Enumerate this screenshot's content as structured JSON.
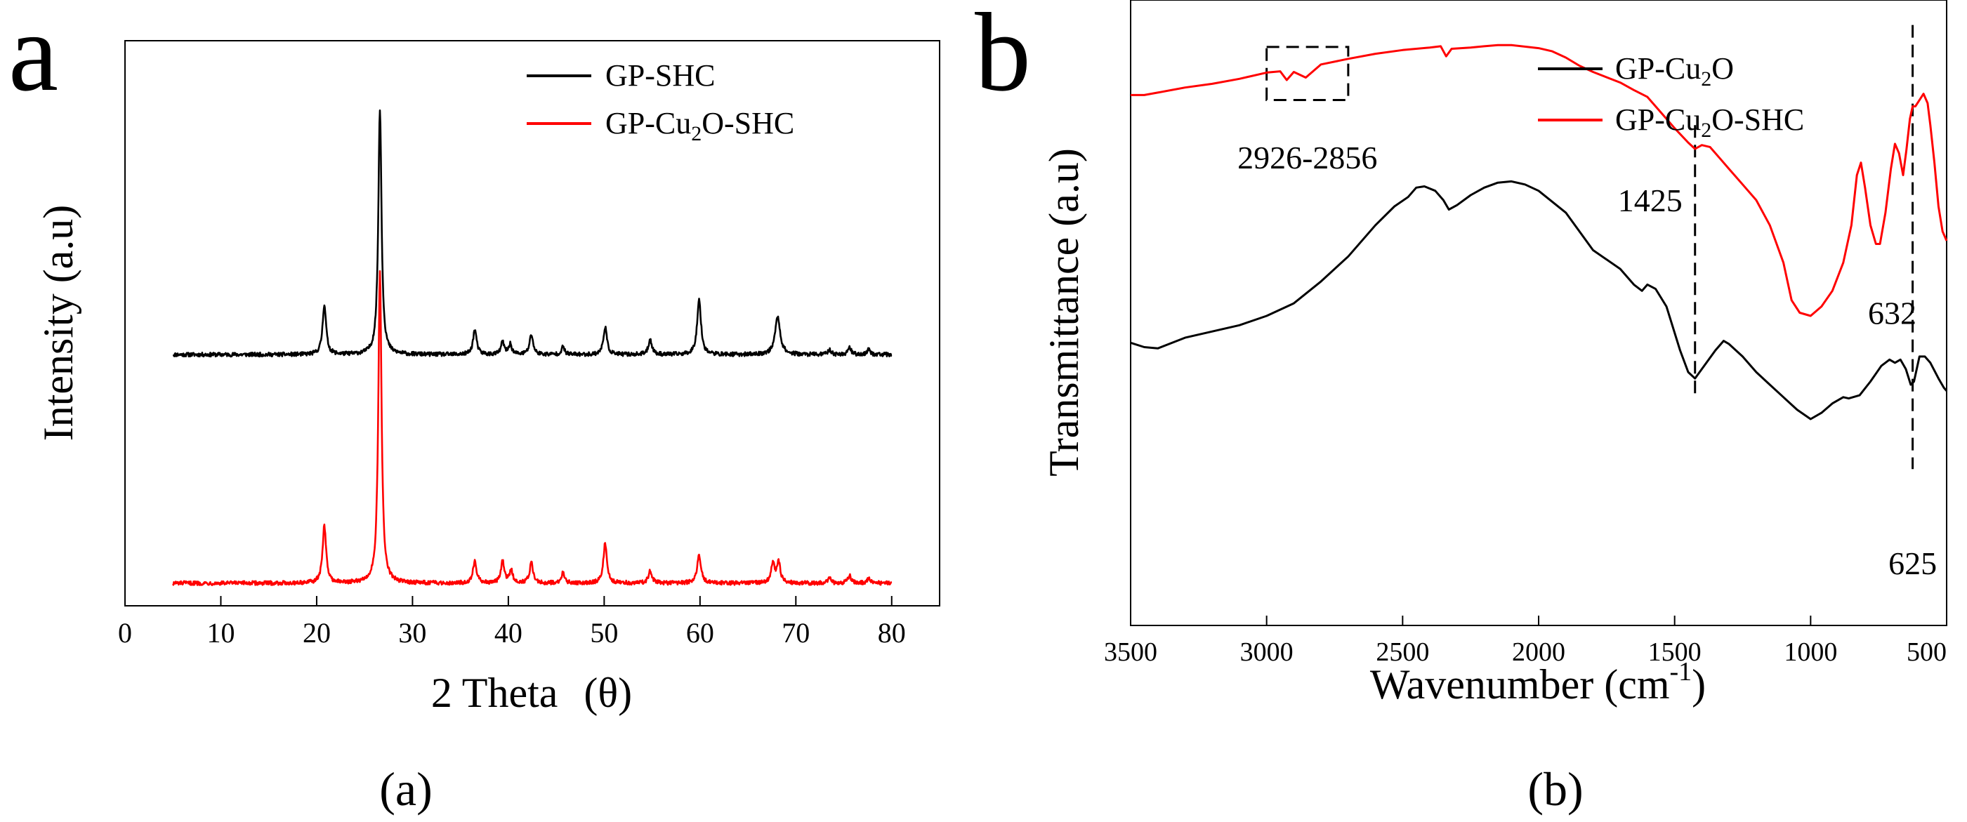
{
  "chart_data": [
    {
      "panel": "a",
      "type": "line",
      "panel_letter": "a",
      "caption": "(a)",
      "xlabel": "2 Theta",
      "xlabel_symbol": "(θ)",
      "ylabel": "Intensity (a.u)",
      "xlim": [
        0,
        85
      ],
      "ylim": [
        0,
        2.25
      ],
      "xticks": [
        0,
        10,
        20,
        30,
        40,
        50,
        60,
        70,
        80
      ],
      "y_ticks_shown": false,
      "legend_position": "top-right",
      "series": [
        {
          "name": "GP-SHC",
          "legend_main": "GP-SHC",
          "legend_sub": "",
          "legend_rest": "",
          "color": "#000000",
          "baseline": 1.0,
          "noise": 0.008,
          "x_range": [
            5,
            80
          ],
          "peaks": [
            {
              "x": 20.8,
              "h": 0.2,
              "w": 0.22
            },
            {
              "x": 26.6,
              "h": 0.98,
              "w": 0.2
            },
            {
              "x": 36.5,
              "h": 0.1,
              "w": 0.22
            },
            {
              "x": 39.4,
              "h": 0.05,
              "w": 0.2
            },
            {
              "x": 40.2,
              "h": 0.04,
              "w": 0.2
            },
            {
              "x": 42.4,
              "h": 0.08,
              "w": 0.22
            },
            {
              "x": 45.7,
              "h": 0.03,
              "w": 0.2
            },
            {
              "x": 50.1,
              "h": 0.11,
              "w": 0.22
            },
            {
              "x": 54.8,
              "h": 0.06,
              "w": 0.22
            },
            {
              "x": 59.9,
              "h": 0.22,
              "w": 0.24
            },
            {
              "x": 68.1,
              "h": 0.15,
              "w": 0.32
            },
            {
              "x": 73.5,
              "h": 0.02,
              "w": 0.2
            },
            {
              "x": 75.6,
              "h": 0.03,
              "w": 0.2
            },
            {
              "x": 77.6,
              "h": 0.02,
              "w": 0.2
            }
          ]
        },
        {
          "name": "GP-Cu2O-SHC",
          "legend_main": "GP-Cu",
          "legend_sub": "2",
          "legend_rest": "O-SHC",
          "color": "#ff0000",
          "baseline": 0.09,
          "noise": 0.008,
          "x_range": [
            5,
            80
          ],
          "peaks": [
            {
              "x": 20.8,
              "h": 0.23,
              "w": 0.22
            },
            {
              "x": 26.6,
              "h": 1.24,
              "w": 0.2
            },
            {
              "x": 36.5,
              "h": 0.09,
              "w": 0.22
            },
            {
              "x": 39.4,
              "h": 0.09,
              "w": 0.2
            },
            {
              "x": 40.3,
              "h": 0.05,
              "w": 0.2
            },
            {
              "x": 42.4,
              "h": 0.08,
              "w": 0.22
            },
            {
              "x": 45.7,
              "h": 0.04,
              "w": 0.2
            },
            {
              "x": 50.1,
              "h": 0.16,
              "w": 0.22
            },
            {
              "x": 54.8,
              "h": 0.05,
              "w": 0.22
            },
            {
              "x": 59.9,
              "h": 0.11,
              "w": 0.24
            },
            {
              "x": 67.6,
              "h": 0.08,
              "w": 0.22
            },
            {
              "x": 68.2,
              "h": 0.08,
              "w": 0.22
            },
            {
              "x": 73.5,
              "h": 0.02,
              "w": 0.2
            },
            {
              "x": 75.6,
              "h": 0.03,
              "w": 0.2
            },
            {
              "x": 77.6,
              "h": 0.02,
              "w": 0.2
            }
          ]
        }
      ]
    },
    {
      "panel": "b",
      "type": "line",
      "panel_letter": "b",
      "caption": "(b)",
      "xlabel": "Wavenumber (cm",
      "xlabel_sup": "-1",
      "xlabel_end": ")",
      "ylabel": "Transmittance (a.u)",
      "xlim": [
        3500,
        500
      ],
      "x_reversed": true,
      "ylim": [
        0,
        1
      ],
      "xticks": [
        3500,
        3000,
        2500,
        2000,
        1500,
        1000,
        500
      ],
      "y_ticks_shown": false,
      "legend_position": "top-right",
      "series": [
        {
          "name": "GP-Cu2O",
          "legend_main": "GP-Cu",
          "legend_sub": "2",
          "legend_rest": "O",
          "color": "#000000",
          "points": [
            [
              3500,
              0.452
            ],
            [
              3450,
              0.445
            ],
            [
              3400,
              0.443
            ],
            [
              3300,
              0.46
            ],
            [
              3200,
              0.47
            ],
            [
              3100,
              0.48
            ],
            [
              3000,
              0.495
            ],
            [
              2900,
              0.515
            ],
            [
              2800,
              0.55
            ],
            [
              2700,
              0.59
            ],
            [
              2600,
              0.64
            ],
            [
              2530,
              0.67
            ],
            [
              2480,
              0.685
            ],
            [
              2450,
              0.7
            ],
            [
              2420,
              0.702
            ],
            [
              2380,
              0.695
            ],
            [
              2350,
              0.68
            ],
            [
              2330,
              0.665
            ],
            [
              2300,
              0.672
            ],
            [
              2250,
              0.688
            ],
            [
              2200,
              0.7
            ],
            [
              2150,
              0.708
            ],
            [
              2100,
              0.71
            ],
            [
              2050,
              0.705
            ],
            [
              2000,
              0.695
            ],
            [
              1900,
              0.66
            ],
            [
              1800,
              0.6
            ],
            [
              1700,
              0.57
            ],
            [
              1650,
              0.545
            ],
            [
              1620,
              0.535
            ],
            [
              1600,
              0.545
            ],
            [
              1570,
              0.538
            ],
            [
              1530,
              0.51
            ],
            [
              1480,
              0.44
            ],
            [
              1450,
              0.405
            ],
            [
              1425,
              0.395
            ],
            [
              1400,
              0.41
            ],
            [
              1350,
              0.44
            ],
            [
              1320,
              0.455
            ],
            [
              1300,
              0.45
            ],
            [
              1250,
              0.43
            ],
            [
              1200,
              0.405
            ],
            [
              1150,
              0.385
            ],
            [
              1100,
              0.365
            ],
            [
              1050,
              0.345
            ],
            [
              1000,
              0.33
            ],
            [
              960,
              0.34
            ],
            [
              920,
              0.355
            ],
            [
              880,
              0.365
            ],
            [
              860,
              0.363
            ],
            [
              820,
              0.368
            ],
            [
              780,
              0.39
            ],
            [
              740,
              0.415
            ],
            [
              710,
              0.425
            ],
            [
              690,
              0.42
            ],
            [
              670,
              0.425
            ],
            [
              650,
              0.41
            ],
            [
              632,
              0.385
            ],
            [
              620,
              0.39
            ],
            [
              600,
              0.43
            ],
            [
              580,
              0.43
            ],
            [
              560,
              0.42
            ],
            [
              530,
              0.395
            ],
            [
              510,
              0.38
            ],
            [
              500,
              0.375
            ]
          ]
        },
        {
          "name": "GP-Cu2O-SHC",
          "legend_main": "GP-Cu",
          "legend_sub": "2",
          "legend_rest": "O-SHC",
          "color": "#ff0000",
          "points": [
            [
              3500,
              0.848
            ],
            [
              3450,
              0.848
            ],
            [
              3400,
              0.852
            ],
            [
              3300,
              0.86
            ],
            [
              3200,
              0.866
            ],
            [
              3100,
              0.874
            ],
            [
              3000,
              0.884
            ],
            [
              2950,
              0.886
            ],
            [
              2926,
              0.872
            ],
            [
              2900,
              0.885
            ],
            [
              2856,
              0.876
            ],
            [
              2800,
              0.897
            ],
            [
              2700,
              0.906
            ],
            [
              2600,
              0.914
            ],
            [
              2500,
              0.92
            ],
            [
              2400,
              0.924
            ],
            [
              2360,
              0.926
            ],
            [
              2340,
              0.91
            ],
            [
              2320,
              0.922
            ],
            [
              2250,
              0.924
            ],
            [
              2200,
              0.926
            ],
            [
              2150,
              0.928
            ],
            [
              2100,
              0.928
            ],
            [
              2000,
              0.923
            ],
            [
              1950,
              0.918
            ],
            [
              1900,
              0.908
            ],
            [
              1850,
              0.895
            ],
            [
              1800,
              0.885
            ],
            [
              1700,
              0.868
            ],
            [
              1650,
              0.856
            ],
            [
              1600,
              0.845
            ],
            [
              1550,
              0.82
            ],
            [
              1500,
              0.795
            ],
            [
              1450,
              0.772
            ],
            [
              1425,
              0.762
            ],
            [
              1400,
              0.768
            ],
            [
              1370,
              0.765
            ],
            [
              1330,
              0.745
            ],
            [
              1300,
              0.73
            ],
            [
              1250,
              0.705
            ],
            [
              1200,
              0.68
            ],
            [
              1150,
              0.64
            ],
            [
              1100,
              0.58
            ],
            [
              1070,
              0.52
            ],
            [
              1040,
              0.5
            ],
            [
              1000,
              0.495
            ],
            [
              960,
              0.51
            ],
            [
              920,
              0.535
            ],
            [
              880,
              0.58
            ],
            [
              850,
              0.64
            ],
            [
              830,
              0.72
            ],
            [
              815,
              0.74
            ],
            [
              800,
              0.7
            ],
            [
              780,
              0.64
            ],
            [
              760,
              0.61
            ],
            [
              745,
              0.61
            ],
            [
              725,
              0.66
            ],
            [
              705,
              0.73
            ],
            [
              690,
              0.77
            ],
            [
              675,
              0.755
            ],
            [
              660,
              0.72
            ],
            [
              648,
              0.76
            ],
            [
              635,
              0.81
            ],
            [
              625,
              0.83
            ],
            [
              615,
              0.83
            ],
            [
              600,
              0.84
            ],
            [
              585,
              0.85
            ],
            [
              570,
              0.835
            ],
            [
              560,
              0.8
            ],
            [
              545,
              0.74
            ],
            [
              530,
              0.67
            ],
            [
              515,
              0.63
            ],
            [
              500,
              0.615
            ]
          ]
        }
      ],
      "annotations": [
        {
          "label": "2926-2856",
          "kind": "dashed-box",
          "x_from": 3000,
          "x_to": 2700,
          "y_from": 0.84,
          "y_to": 0.925,
          "label_x": 2850,
          "label_y": 0.78
        },
        {
          "label": "1425",
          "kind": "dashed-vline",
          "x": 1425,
          "y_from": 0.36,
          "y_to": 0.8,
          "label_x": 1590,
          "label_y": 0.68
        },
        {
          "label": "632",
          "kind": "text",
          "x": 700,
          "y": 0.5
        },
        {
          "label": "625",
          "kind": "dashed-vline",
          "x": 625,
          "y_from": 0.25,
          "y_to": 0.96,
          "label_x": 625,
          "label_y": 0.1
        }
      ]
    }
  ]
}
